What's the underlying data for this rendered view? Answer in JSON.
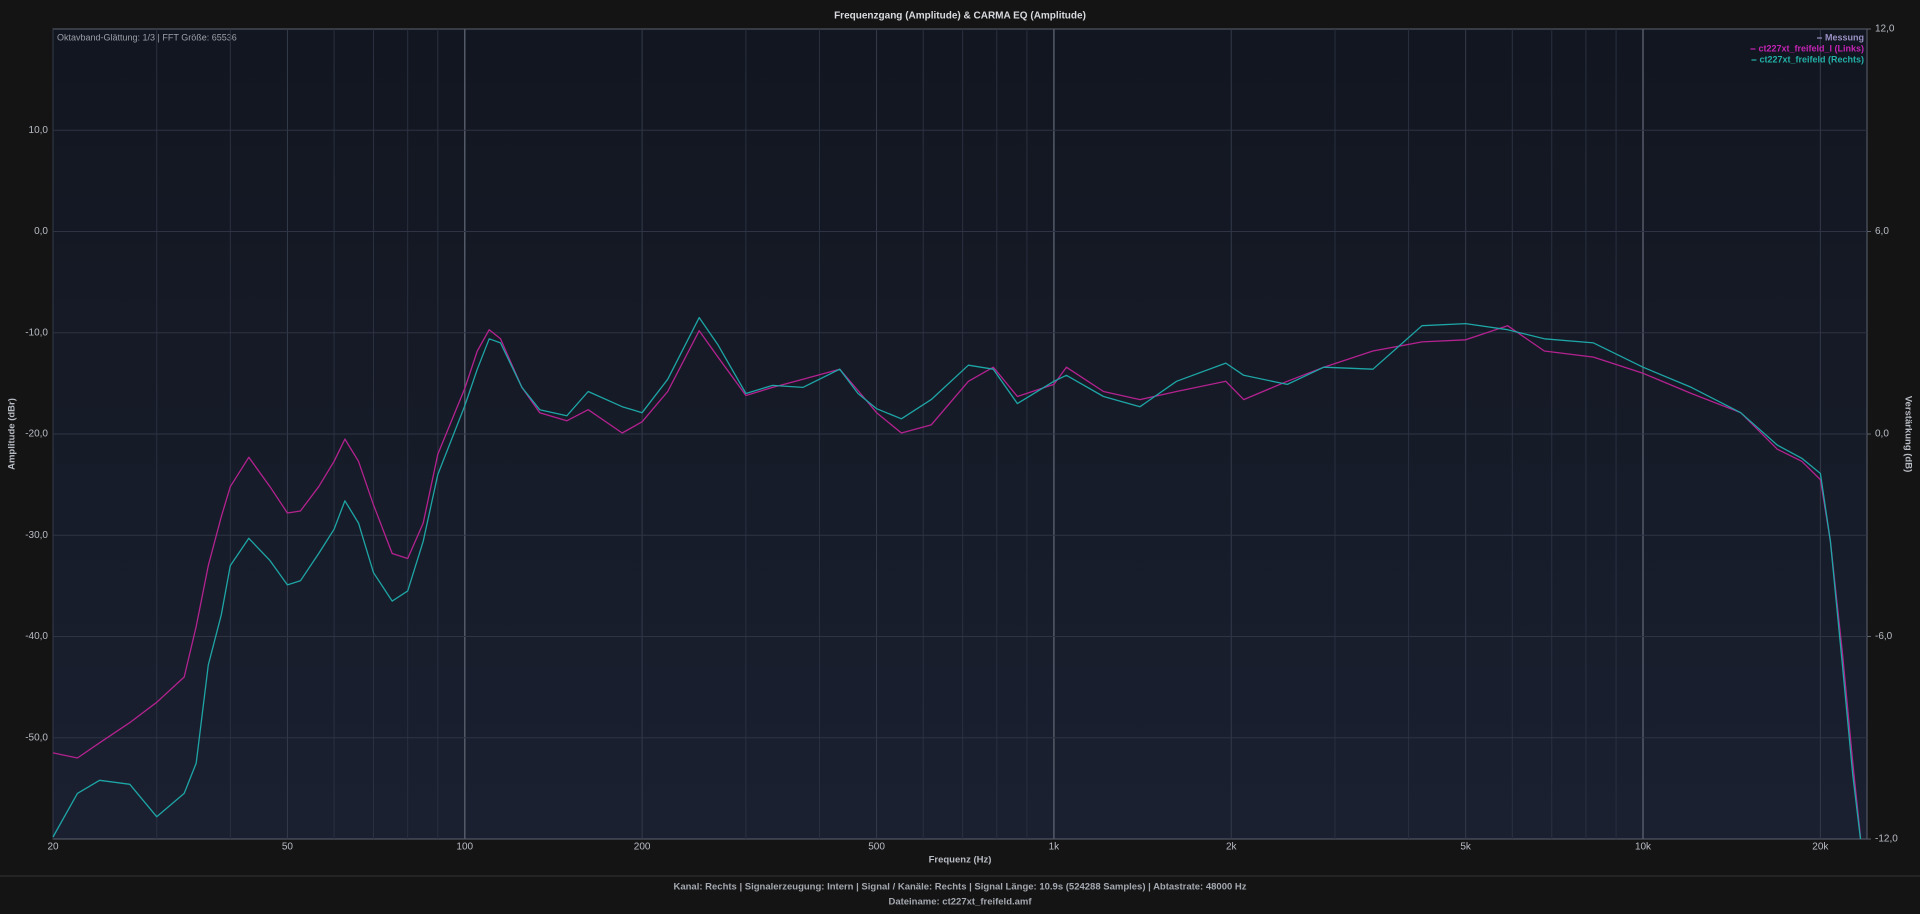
{
  "chart_data": {
    "type": "line",
    "title": "Frequenzgang (Amplitude) & CARMA EQ (Amplitude)",
    "annotation": "Oktavband-Glättung: 1/3 | FFT Größe: 65536",
    "xlabel": "Frequenz (Hz)",
    "ylabel": "Amplitude (dBr)",
    "y2label": "Verstärkung (dB)",
    "footer": [
      "Kanal: Rechts  |  Signalerzeugung: Intern  |  Signal / Kanäle: Rechts  |  Signal Länge: 10.9s (524288 Samples)  |  Abtastrate: 48000 Hz",
      "Dateiname: ct227xt_freifeld.amf"
    ],
    "log_x": true,
    "grid": true,
    "legend": "top-right",
    "legend_extra": {
      "name": "Messung",
      "color": "#9a90c4"
    },
    "xlim": [
      20,
      24000
    ],
    "xticks": [
      20,
      50,
      100,
      200,
      500,
      {
        "value": 1000,
        "label": "1k"
      },
      {
        "value": 2000,
        "label": "2k"
      },
      {
        "value": 5000,
        "label": "5k"
      },
      {
        "value": 10000,
        "label": "10k"
      },
      {
        "value": 20000,
        "label": "20k"
      }
    ],
    "xminor": [
      30,
      40,
      60,
      70,
      80,
      90,
      300,
      400,
      600,
      700,
      800,
      900,
      3000,
      4000,
      6000,
      7000,
      8000,
      9000
    ],
    "ylim": [
      -60,
      20
    ],
    "yticks": [
      {
        "value": -50,
        "label": "-50,0"
      },
      {
        "value": -40,
        "label": "-40,0"
      },
      {
        "value": -30,
        "label": "-30,0"
      },
      {
        "value": -20,
        "label": "-20,0"
      },
      {
        "value": -10,
        "label": "-10,0"
      },
      {
        "value": 0,
        "label": "0,0"
      },
      {
        "value": 10,
        "label": "10,0"
      }
    ],
    "y2lim": [
      -12,
      12
    ],
    "y2ticks": [
      {
        "value": -12,
        "label": "-12,0"
      },
      {
        "value": -6,
        "label": "-6,0"
      },
      {
        "value": 0,
        "label": "0,0"
      },
      {
        "value": 6,
        "label": "6,0"
      },
      {
        "value": 12,
        "label": "12,0"
      }
    ],
    "x": [
      20,
      22,
      24,
      27,
      30,
      33.4,
      35,
      36.7,
      38.6,
      40,
      43,
      46.7,
      50,
      52.6,
      56.5,
      60,
      62.6,
      66,
      70,
      75.3,
      80,
      85,
      90,
      100,
      105,
      110,
      115,
      125,
      134,
      149,
      162,
      185,
      200,
      221,
      250,
      269,
      300,
      333,
      375,
      433,
      465,
      500,
      551,
      619,
      716,
      789,
      867,
      1000,
      1050,
      1214,
      1400,
      1615,
      1958,
      2100,
      2490,
      2872,
      3480,
      4216,
      5000,
      5890,
      6800,
      8240,
      10000,
      12080,
      14650,
      16900,
      18600,
      20000,
      20800,
      21800,
      22700,
      23400
    ],
    "series": [
      {
        "name": "ct227xt_freifeld_l (Links)",
        "color": "#b3228f",
        "legend_color": "#c424b4",
        "values": [
          -51.5,
          -52,
          -50.5,
          -48.5,
          -46.5,
          -44,
          -39,
          -33,
          -28.2,
          -25.2,
          -22.3,
          -25.2,
          -27.8,
          -27.6,
          -25.2,
          -22.7,
          -20.5,
          -22.7,
          -27,
          -31.8,
          -32.3,
          -28.8,
          -22,
          -15.5,
          -11.8,
          -9.7,
          -10.6,
          -15.4,
          -17.9,
          -18.7,
          -17.6,
          -19.9,
          -18.8,
          -15.8,
          -9.8,
          -12.4,
          -16.2,
          -15.4,
          -14.6,
          -13.6,
          -15.7,
          -17.9,
          -19.9,
          -19.1,
          -14.8,
          -13.4,
          -16.3,
          -15.1,
          -13.4,
          -15.8,
          -16.6,
          -15.8,
          -14.8,
          -16.6,
          -14.8,
          -13.4,
          -11.8,
          -10.9,
          -10.7,
          -9.3,
          -11.8,
          -12.4,
          -14,
          -16,
          -17.9,
          -21.5,
          -22.7,
          -24.5,
          -30.6,
          -41.6,
          -52.5,
          -59.8
        ]
      },
      {
        "name": "ct227xt_freifeld (Rechts)",
        "color": "#1ea5a5",
        "legend_color": "#22b0a6",
        "values": [
          -59.8,
          -55.5,
          -54.2,
          -54.6,
          -57.8,
          -55.5,
          -52.5,
          -42.8,
          -37.9,
          -33,
          -30.3,
          -32.5,
          -34.9,
          -34.5,
          -31.8,
          -29.4,
          -26.6,
          -28.8,
          -33.7,
          -36.5,
          -35.5,
          -30.6,
          -24,
          -17.2,
          -13.6,
          -10.6,
          -11,
          -15.4,
          -17.6,
          -18.2,
          -15.8,
          -17.3,
          -17.9,
          -14.6,
          -8.5,
          -11.2,
          -16,
          -15.2,
          -15.4,
          -13.6,
          -16,
          -17.5,
          -18.5,
          -16.6,
          -13.2,
          -13.6,
          -17,
          -14.8,
          -14.2,
          -16.3,
          -17.3,
          -14.8,
          -13,
          -14.2,
          -15.1,
          -13.4,
          -13.6,
          -9.3,
          -9.1,
          -9.7,
          -10.6,
          -11,
          -13.4,
          -15.4,
          -17.9,
          -21.1,
          -22.4,
          -23.9,
          -30.6,
          -42.8,
          -53.7,
          -60
        ]
      }
    ]
  }
}
